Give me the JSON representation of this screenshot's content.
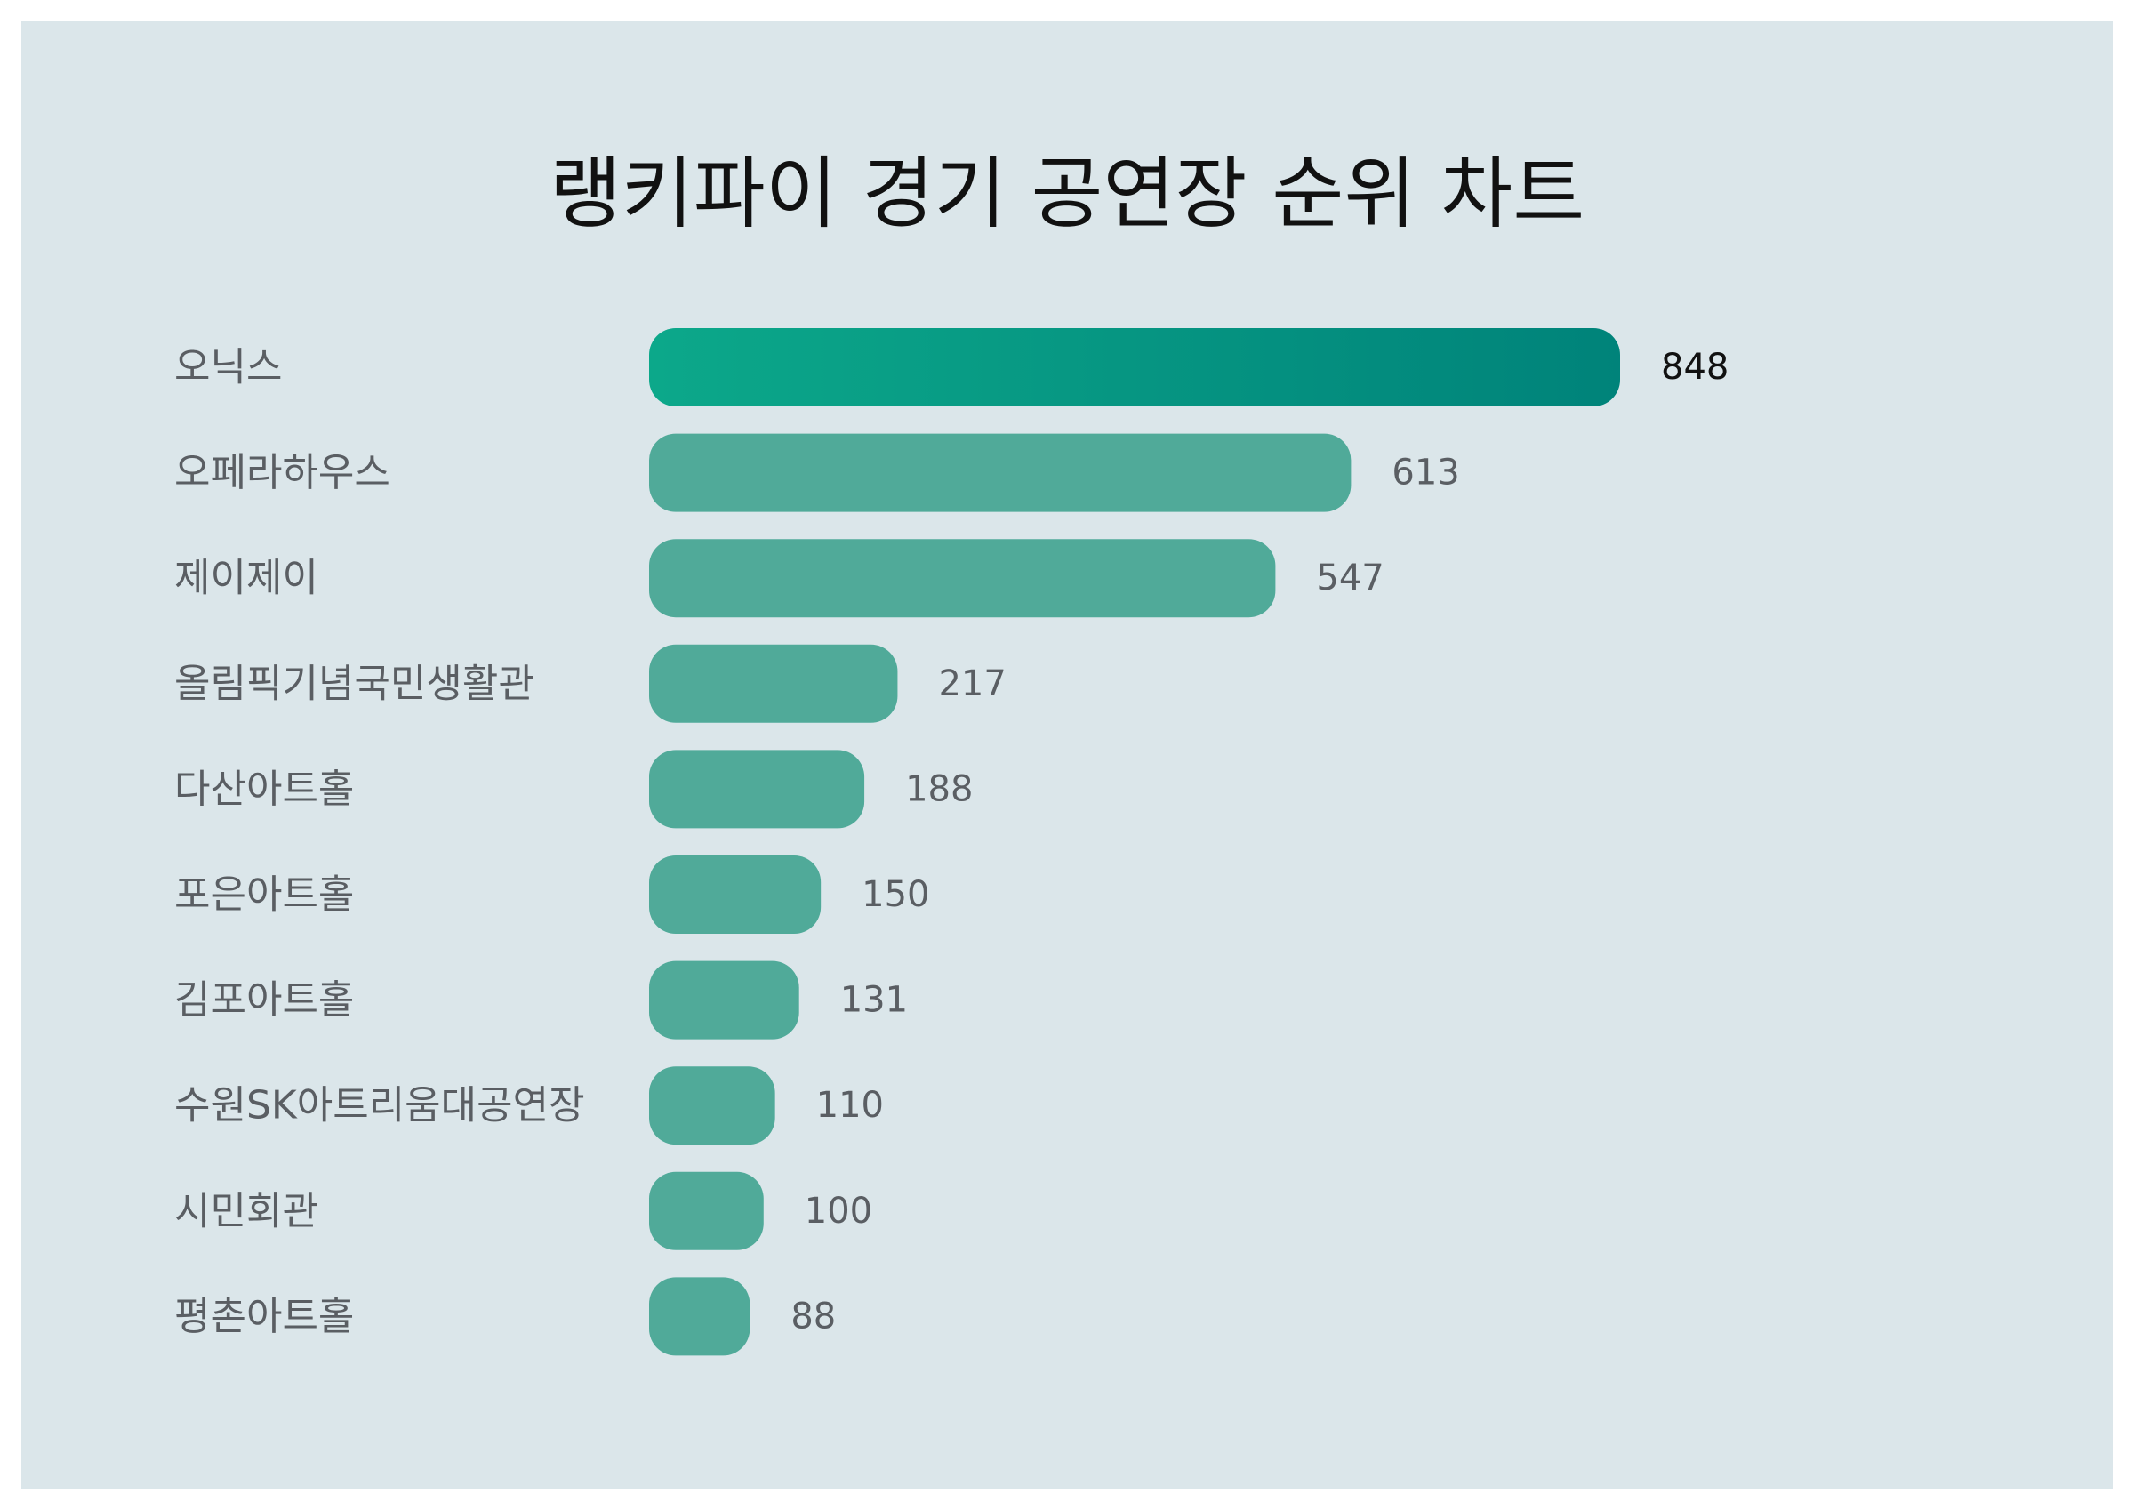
{
  "chart_data": {
    "type": "bar",
    "orientation": "horizontal",
    "title": "랭키파이 경기 공연장 순위 차트",
    "categories": [
      "오닉스",
      "오페라하우스",
      "제이제이",
      "올림픽기념국민생활관",
      "다산아트홀",
      "포은아트홀",
      "김포아트홀",
      "수원SK아트리움대공연장",
      "시민회관",
      "평촌아트홀"
    ],
    "values": [
      848,
      613,
      547,
      217,
      188,
      150,
      131,
      110,
      100,
      88
    ],
    "xlim": [
      0,
      848
    ],
    "grid": false,
    "legend": "none"
  },
  "colors": {
    "background": "#dbe6ea",
    "bar": "#50aa99",
    "top_bar_start": "#0ca88a",
    "top_bar_end": "#00837a",
    "label_text": "#5a5e63",
    "top_value_text": "#111111"
  }
}
